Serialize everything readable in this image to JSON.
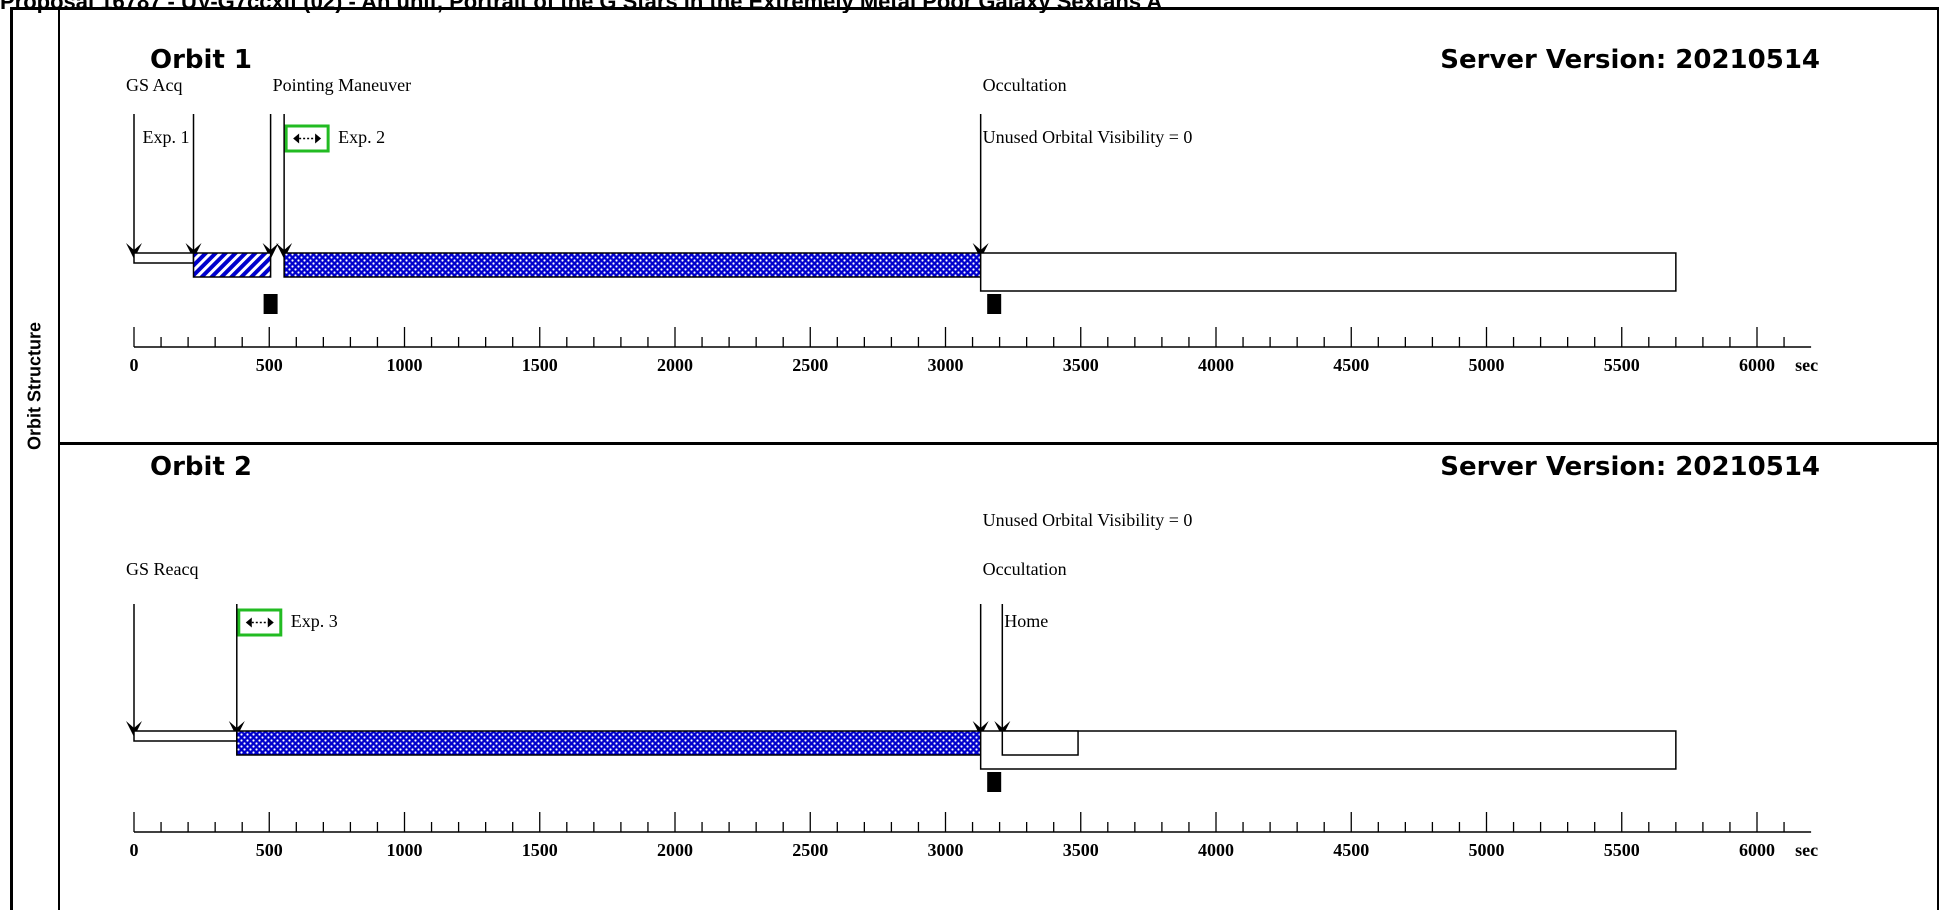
{
  "caption": "Proposal 16787 - UV-G7ccxif (02) - An unif, Portrait of the G Stars in the Extremely Metal Poor Galaxy Sextans A",
  "sidebar_label": "Orbit Structure",
  "colors": {
    "exposure_blue": "#0000cc",
    "acq_highlight": "#22bb22",
    "line": "#000000"
  },
  "orbits": [
    {
      "title": "Orbit 1",
      "server_version": "Server Version: 20210514",
      "axis": {
        "ticks": [
          0,
          500,
          1000,
          1500,
          2000,
          2500,
          3000,
          3500,
          4000,
          4500,
          5000,
          5500,
          6000
        ],
        "unit": "sec",
        "max": 6200
      },
      "labels": [
        {
          "text": "GS Acq",
          "row": 1,
          "at": 0
        },
        {
          "text": "Pointing Maneuver",
          "row": 1,
          "at": 505
        },
        {
          "text": "Occultation",
          "row": 1,
          "at": 3130
        },
        {
          "text": "Exp. 1",
          "row": 2,
          "at": 220,
          "align": "end"
        },
        {
          "text": "Exp. 2",
          "row": 2,
          "at": 555,
          "icon": true
        },
        {
          "text": "Unused Orbital Visibility = 0",
          "row": 2,
          "at": 3130
        }
      ],
      "arrows": [
        0,
        220,
        505,
        555,
        3130
      ],
      "segments": [
        {
          "kind": "plain",
          "start": 0,
          "end": 220
        },
        {
          "kind": "hatched",
          "start": 220,
          "end": 505
        },
        {
          "kind": "dotted",
          "start": 555,
          "end": 3130
        },
        {
          "kind": "open",
          "start": 3130,
          "end": 5700
        }
      ],
      "markers": [
        505,
        3180
      ]
    },
    {
      "title": "Orbit 2",
      "server_version": "Server Version: 20210514",
      "axis": {
        "ticks": [
          0,
          500,
          1000,
          1500,
          2000,
          2500,
          3000,
          3500,
          4000,
          4500,
          5000,
          5500,
          6000
        ],
        "unit": "sec",
        "max": 6200
      },
      "labels": [
        {
          "text": "Unused Orbital Visibility = 0",
          "row": 0,
          "at": 3130
        },
        {
          "text": "GS Reacq",
          "row": 1,
          "at": 0
        },
        {
          "text": "Occultation",
          "row": 1,
          "at": 3130
        },
        {
          "text": "Exp. 3",
          "row": 2,
          "at": 380,
          "icon": true
        },
        {
          "text": "Home",
          "row": 2,
          "at": 3210
        }
      ],
      "arrows": [
        0,
        380,
        3130,
        3210
      ],
      "segments": [
        {
          "kind": "plain",
          "start": 0,
          "end": 380
        },
        {
          "kind": "dotted",
          "start": 380,
          "end": 3130
        },
        {
          "kind": "open",
          "start": 3130,
          "end": 5700
        },
        {
          "kind": "inner",
          "start": 3210,
          "end": 3490
        }
      ],
      "markers": [
        3180
      ]
    }
  ]
}
